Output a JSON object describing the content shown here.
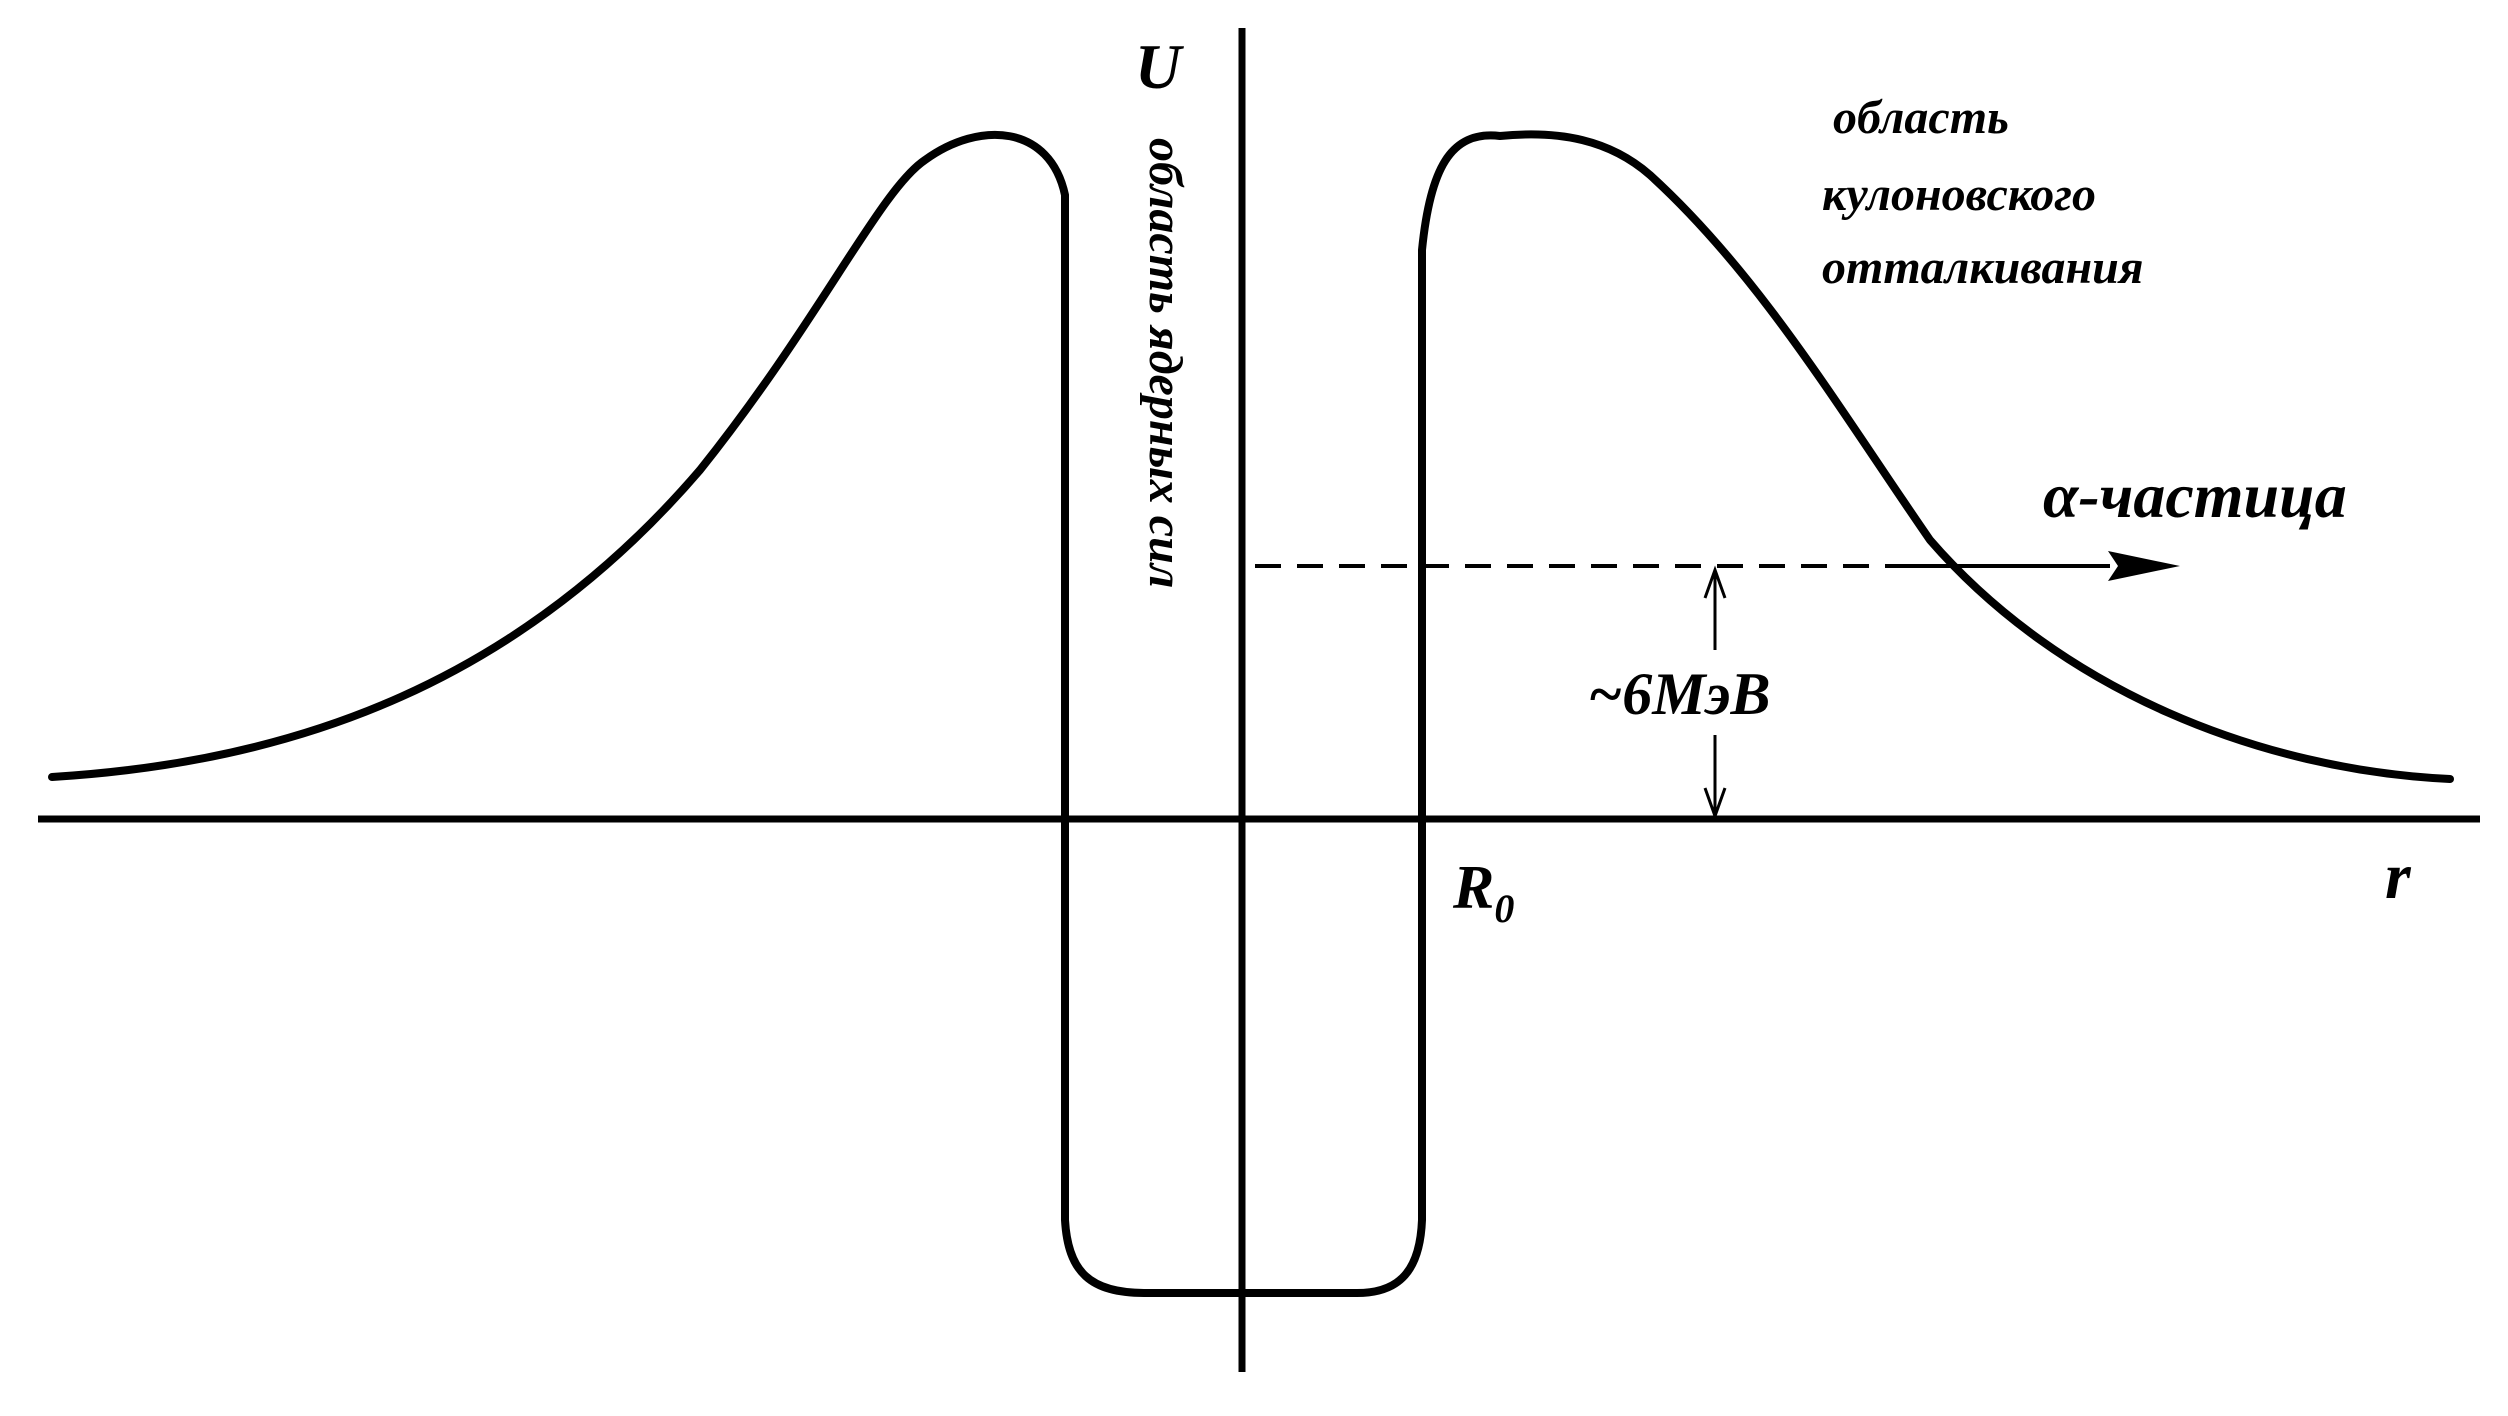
{
  "labels": {
    "y_axis": "U",
    "x_axis": "r",
    "radius": "R",
    "radius_subscript": "0",
    "nuclear_region": "область ядерных сил",
    "coulomb_region": [
      "область",
      "кулоновского",
      "отталкивания"
    ],
    "particle": "α-частица",
    "energy": "~6МэВ"
  },
  "colors": {
    "ink": "#000000",
    "background": "#ffffff"
  }
}
